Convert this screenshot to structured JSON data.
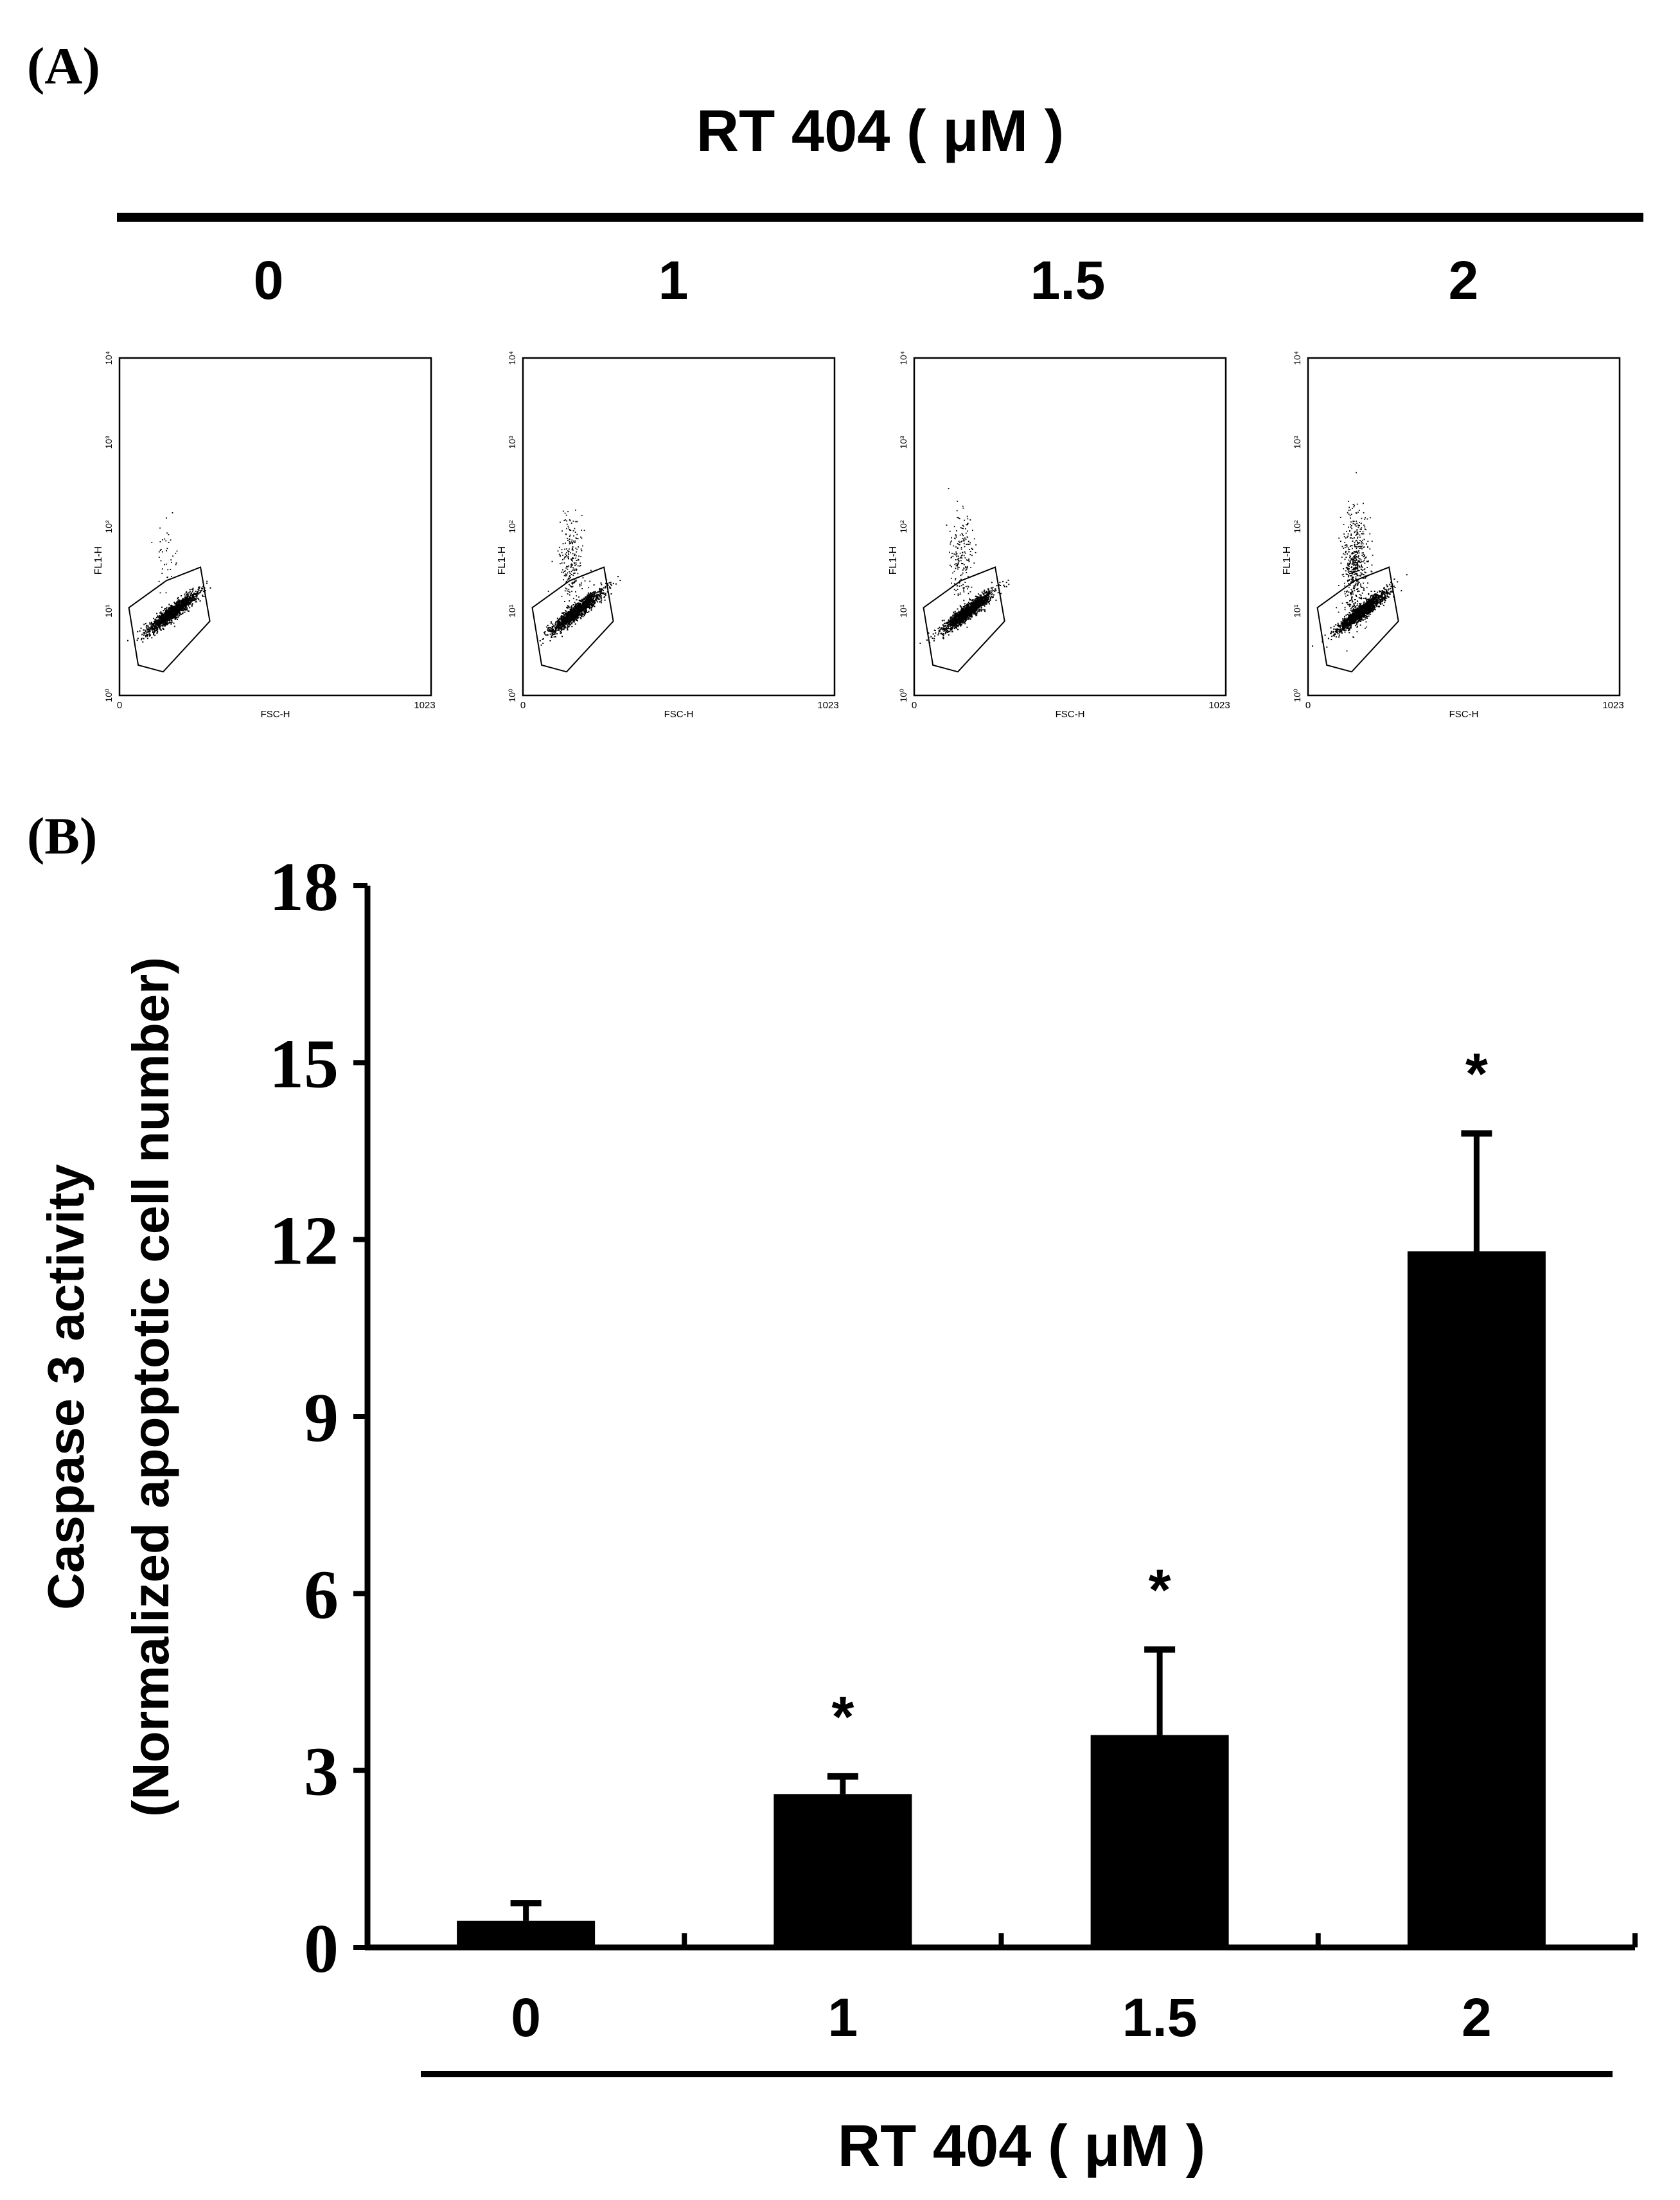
{
  "panel_a": {
    "label": "(A)",
    "title": "RT 404 ( μM )",
    "concentrations": [
      "0",
      "1",
      "1.5",
      "2"
    ],
    "plot": {
      "y_axis_label": "FL1-H",
      "x_axis_label": "FSC-H",
      "x_tick_min": "0",
      "x_tick_max": "1023",
      "y_ticks": [
        "10⁰",
        "10¹",
        "10²",
        "10³",
        "10⁴"
      ]
    },
    "upper_population_fraction": [
      0.02,
      0.12,
      0.1,
      0.28
    ]
  },
  "panel_b": {
    "label": "(B)",
    "star_symbol": "*",
    "x_group_label": "RT 404 ( μM )"
  },
  "chart_data": {
    "type": "bar",
    "title": "",
    "xlabel": "RT 404 ( μM )",
    "ylabel_line1": "Caspase 3 activity",
    "ylabel_line2": "(Normalized apoptotic cell number)",
    "categories": [
      "0",
      "1",
      "1.5",
      "2"
    ],
    "values": [
      0.45,
      2.6,
      3.6,
      11.8
    ],
    "errors": [
      0.3,
      0.3,
      1.45,
      2.0
    ],
    "significant": [
      false,
      true,
      true,
      true
    ],
    "ylim": [
      0,
      18
    ],
    "yticks": [
      "0",
      "3",
      "6",
      "9",
      "12",
      "15",
      "18"
    ],
    "colors": {
      "bar": "#000000",
      "axis": "#000000"
    }
  }
}
